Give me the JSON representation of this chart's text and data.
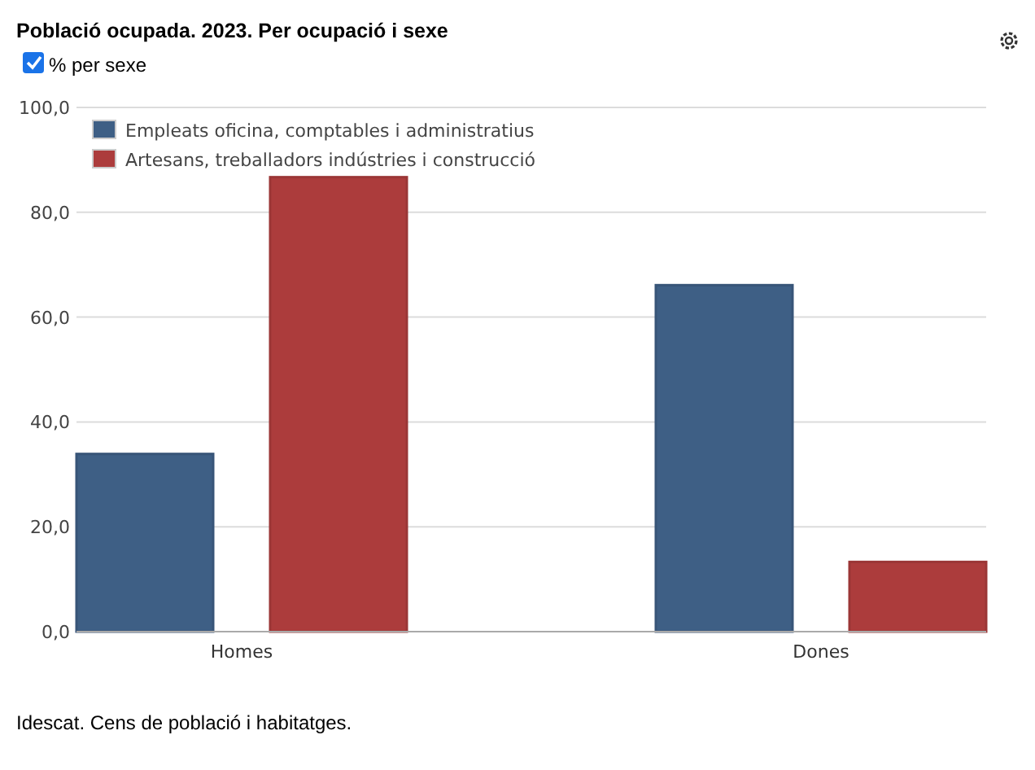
{
  "chart_data": {
    "type": "bar",
    "title": "Població ocupada. 2023. Per ocupació i sexe",
    "categories": [
      "Homes",
      "Dones"
    ],
    "series": [
      {
        "name": "Empleats oficina, comptables i administratius",
        "color": "#3e5f85",
        "values": [
          33.9,
          66.1
        ]
      },
      {
        "name": "Artesans, treballadors indústries i construcció",
        "color": "#ac3c3c",
        "values": [
          86.7,
          13.3
        ]
      }
    ],
    "ylim": [
      0,
      100
    ],
    "yticks": [
      {
        "value": 0,
        "label": "0,0"
      },
      {
        "value": 20,
        "label": "20,0"
      },
      {
        "value": 40,
        "label": "40,0"
      },
      {
        "value": 60,
        "label": "60,0"
      },
      {
        "value": 80,
        "label": "80,0"
      },
      {
        "value": 100,
        "label": "100,0"
      }
    ],
    "grid": "y",
    "legend": "top left",
    "annotations": [
      "% per sexe",
      "Idescat. Cens de població i habitatges."
    ]
  }
}
